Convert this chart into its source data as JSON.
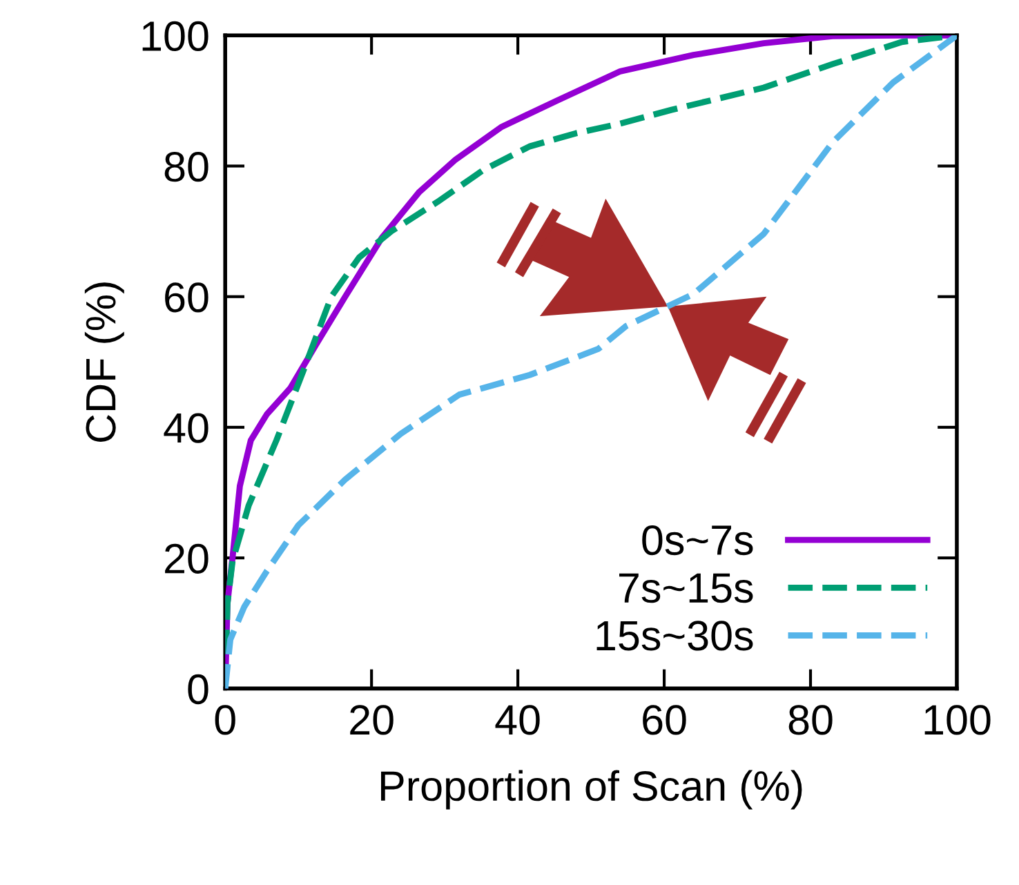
{
  "chart_data": {
    "type": "line",
    "xlabel": "Proportion of Scan (%)",
    "ylabel": "CDF (%)",
    "xlim": [
      0,
      100
    ],
    "ylim": [
      0,
      100
    ],
    "xticks": [
      0,
      20,
      40,
      60,
      80,
      100
    ],
    "yticks": [
      0,
      20,
      40,
      60,
      80,
      100
    ],
    "grid": false,
    "legend": "bottom right",
    "series": [
      {
        "name": "0s~7s",
        "color": "#9400d3",
        "line_style": "solid",
        "x": [
          0,
          0.3,
          1,
          2,
          3.5,
          5.7,
          8.9,
          12.6,
          16.4,
          21.4,
          26.5,
          31.5,
          37.8,
          45.3,
          54,
          64,
          73.6,
          83,
          92.5,
          100
        ],
        "values": [
          0,
          13,
          20,
          31,
          38,
          42,
          46,
          53,
          60,
          69,
          76,
          81,
          86,
          90,
          94.5,
          97,
          98.8,
          99.9,
          100,
          100
        ]
      },
      {
        "name": "7s~15s",
        "color": "#009e73",
        "line_style": "dashed",
        "x": [
          0,
          0.3,
          1,
          3.2,
          7,
          10.8,
          14.5,
          18.3,
          22.7,
          29,
          35.3,
          41.6,
          47.9,
          54,
          61,
          73.6,
          83,
          92.5,
          100
        ],
        "values": [
          0,
          13,
          19.5,
          28,
          38,
          49,
          60,
          66,
          70,
          74.5,
          79.4,
          83,
          85,
          86.5,
          88.6,
          92,
          95.6,
          99,
          100
        ]
      },
      {
        "name": "15s~30s",
        "color": "#56b4e9",
        "line_style": "dashed",
        "x": [
          0,
          0.7,
          2.6,
          5.7,
          10,
          16.4,
          24,
          32,
          41.6,
          51,
          54.8,
          64,
          73.6,
          83,
          91.3,
          100
        ],
        "values": [
          0,
          7.5,
          12.5,
          18,
          25,
          32,
          39,
          45,
          48,
          52,
          55.5,
          60.4,
          69.6,
          83.6,
          92.8,
          100
        ]
      }
    ]
  }
}
